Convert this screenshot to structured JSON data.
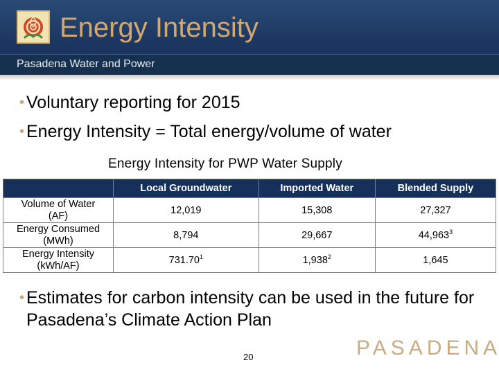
{
  "header": {
    "title": "Energy Intensity",
    "subtitle": "Pasadena Water and Power"
  },
  "bullets": [
    "Voluntary reporting for 2015",
    "Energy Intensity = Total energy/volume of water",
    "Estimates for carbon intensity can be used in the future for Pasadena’s Climate Action Plan"
  ],
  "table": {
    "caption": "Energy Intensity for PWP Water Supply",
    "columns": [
      "",
      "Local Groundwater",
      "Imported Water",
      "Blended Supply"
    ],
    "rows": [
      {
        "label_line1": "Volume of Water",
        "label_line2": "(AF)",
        "values": [
          {
            "value": "12,019",
            "note": ""
          },
          {
            "value": "15,308",
            "note": ""
          },
          {
            "value": "27,327",
            "note": ""
          }
        ]
      },
      {
        "label_line1": "Energy Consumed",
        "label_line2": "(MWh)",
        "values": [
          {
            "value": "8,794",
            "note": ""
          },
          {
            "value": "29,667",
            "note": ""
          },
          {
            "value": "44,963",
            "note": "3"
          }
        ]
      },
      {
        "label_line1": "Energy Intensity",
        "label_line2": "(kWh/AF)",
        "values": [
          {
            "value": "731.70",
            "note": "1"
          },
          {
            "value": "1,938",
            "note": "2"
          },
          {
            "value": "1,645",
            "note": ""
          }
        ]
      }
    ]
  },
  "footer": {
    "page_number": "20",
    "brand": "PASADENA"
  },
  "colors": {
    "header_bg": "#1c3862",
    "title": "#d1a970",
    "table_header_bg": "#15315a",
    "bullet_dot": "#d9a06a",
    "brand": "#c7ab82"
  },
  "icons": {
    "logo": "rose-logo-icon"
  }
}
